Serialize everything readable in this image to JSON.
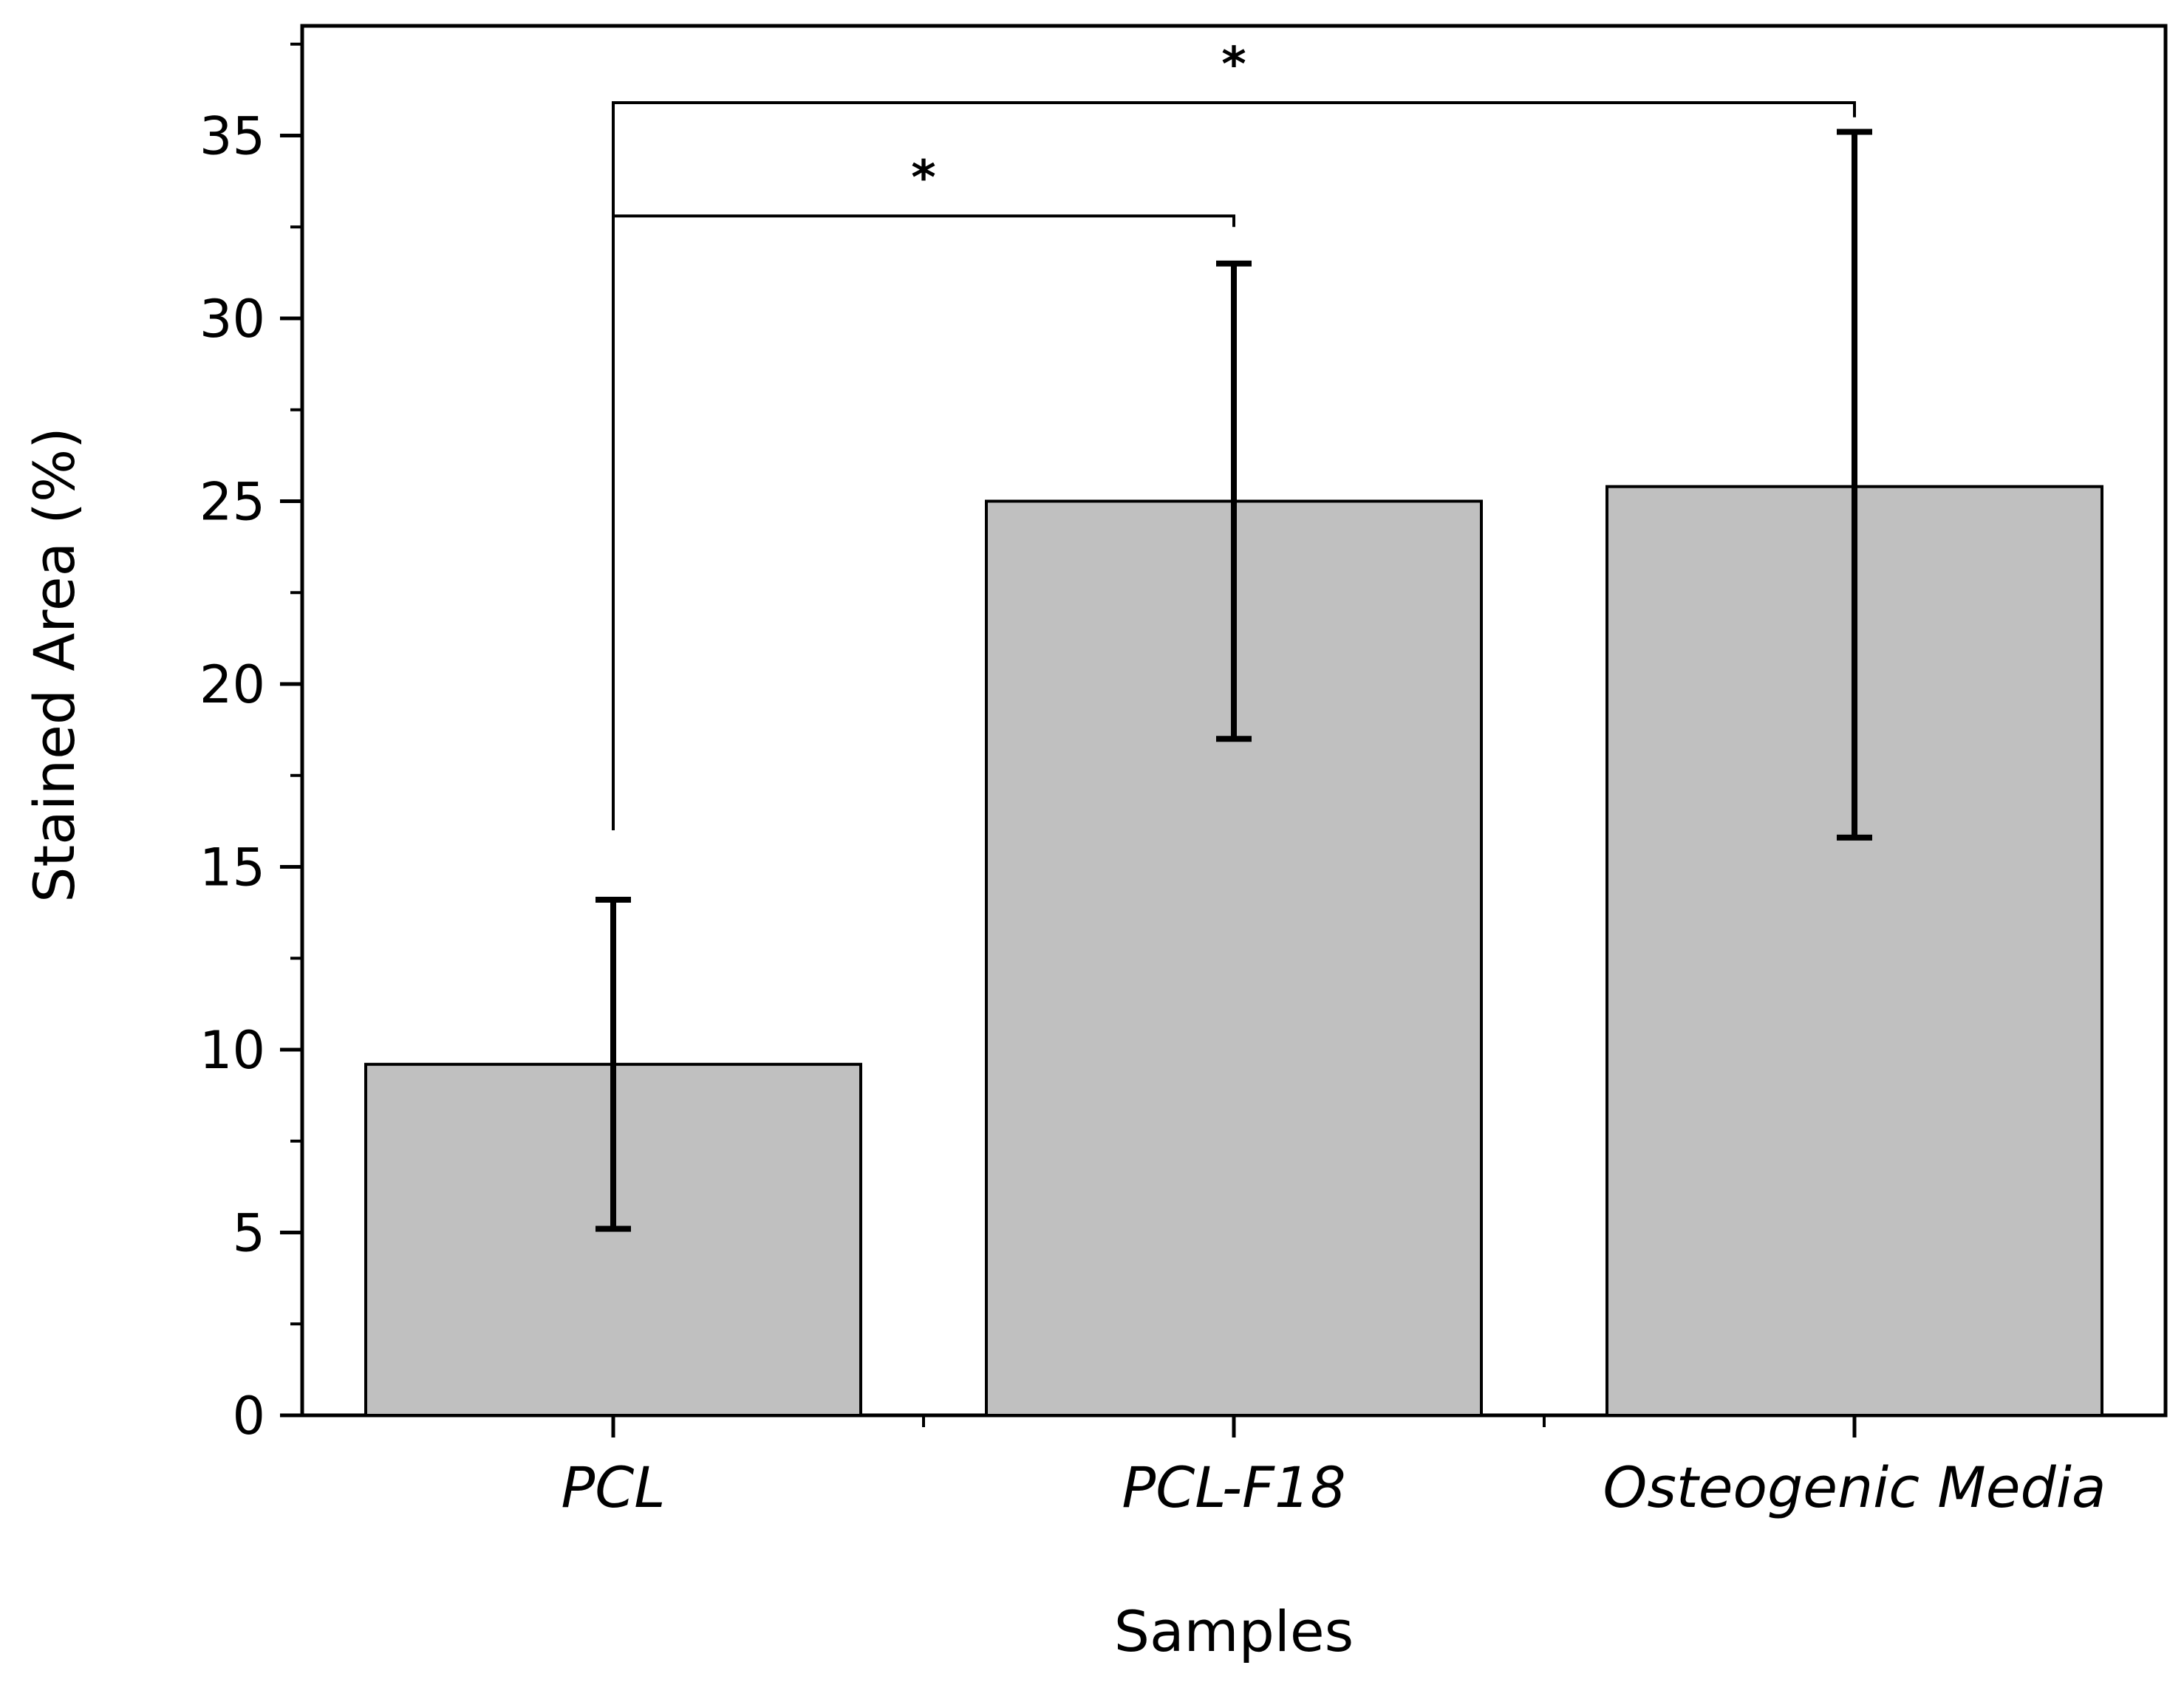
{
  "chart_data": {
    "type": "bar",
    "title": "",
    "xlabel": "Samples",
    "ylabel": "Stained Area (%)",
    "categories": [
      "PCL",
      "PCL-F18",
      "Osteogenic Media"
    ],
    "values": [
      9.6,
      25.0,
      25.4
    ],
    "error_low": [
      5.1,
      18.5,
      15.8
    ],
    "error_high": [
      14.1,
      31.5,
      35.1
    ],
    "ylim": [
      0,
      38
    ],
    "yticks": [
      0,
      5,
      10,
      15,
      20,
      25,
      30,
      35
    ],
    "ytick_labels": [
      "0",
      "5",
      "10",
      "15",
      "20",
      "25",
      "30",
      "35"
    ],
    "grid": false,
    "bar_color": "#c0c0c0",
    "significance": [
      {
        "from": 0,
        "to": 1,
        "label": "*",
        "level": 32.8,
        "left_drop": 25.5,
        "right_drop": 32.5
      },
      {
        "from": 0,
        "to": 2,
        "label": "*",
        "level": 35.9,
        "left_drop": 16.0,
        "right_drop": 35.5
      }
    ]
  }
}
